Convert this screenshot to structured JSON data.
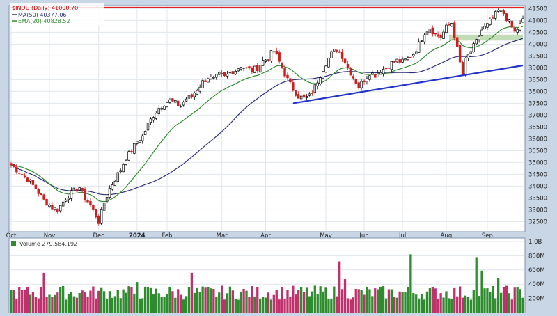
{
  "chart_data": [
    {
      "type": "candlestick",
      "title": "$INDU (Daily) 41000.70",
      "symbol": "$INDU",
      "period": "Daily",
      "last": "41000.70",
      "legend": [
        {
          "label": "MA(50) 40377.06",
          "color": "#2f2f7a"
        },
        {
          "label": "EMA(20) 40828.52",
          "color": "#2e8b2e"
        }
      ],
      "x_labels": [
        "Oct",
        "Nov",
        "Dec",
        "2024",
        "Feb",
        "Mar",
        "Apr",
        "May",
        "Jun",
        "Jul",
        "Aug",
        "Sep"
      ],
      "y_ticks": [
        "32500",
        "33000",
        "33500",
        "34000",
        "34500",
        "35000",
        "35500",
        "36000",
        "36500",
        "37000",
        "37500",
        "38000",
        "38500",
        "39000",
        "39500",
        "40000",
        "40500",
        "41000",
        "41500"
      ],
      "ylim": [
        32100,
        41600
      ],
      "grid": true,
      "price_path": [
        [
          0,
          34900
        ],
        [
          3,
          34600
        ],
        [
          6,
          34300
        ],
        [
          9,
          33900
        ],
        [
          12,
          33400
        ],
        [
          15,
          33100
        ],
        [
          17,
          33000
        ],
        [
          20,
          33500
        ],
        [
          23,
          33800
        ],
        [
          25,
          33950
        ],
        [
          27,
          33500
        ],
        [
          29,
          33200
        ],
        [
          31,
          32750
        ],
        [
          32,
          32500
        ],
        [
          34,
          33300
        ],
        [
          36,
          33900
        ],
        [
          38,
          34300
        ],
        [
          40,
          34700
        ],
        [
          42,
          35200
        ],
        [
          44,
          35500
        ],
        [
          46,
          35900
        ],
        [
          48,
          36100
        ],
        [
          50,
          36600
        ],
        [
          52,
          37000
        ],
        [
          54,
          37300
        ],
        [
          56,
          37500
        ],
        [
          58,
          37600
        ],
        [
          60,
          37500
        ],
        [
          62,
          37400
        ],
        [
          64,
          37700
        ],
        [
          66,
          37800
        ],
        [
          68,
          38100
        ],
        [
          70,
          38400
        ],
        [
          72,
          38600
        ],
        [
          74,
          38500
        ],
        [
          76,
          38700
        ],
        [
          78,
          38600
        ],
        [
          80,
          38800
        ],
        [
          82,
          38900
        ],
        [
          84,
          39100
        ],
        [
          86,
          38950
        ],
        [
          88,
          38900
        ],
        [
          90,
          39000
        ],
        [
          92,
          39300
        ],
        [
          94,
          39400
        ],
        [
          95,
          39600
        ],
        [
          96,
          39700
        ],
        [
          97,
          39500
        ],
        [
          99,
          39000
        ],
        [
          101,
          38500
        ],
        [
          103,
          38100
        ],
        [
          105,
          37800
        ],
        [
          107,
          37700
        ],
        [
          109,
          37800
        ],
        [
          111,
          38200
        ],
        [
          113,
          38700
        ],
        [
          115,
          39200
        ],
        [
          117,
          39600
        ],
        [
          119,
          39800
        ],
        [
          121,
          39500
        ],
        [
          123,
          39000
        ],
        [
          125,
          38600
        ],
        [
          127,
          38200
        ],
        [
          129,
          38500
        ],
        [
          131,
          38800
        ],
        [
          133,
          38700
        ],
        [
          135,
          38900
        ],
        [
          137,
          39000
        ],
        [
          139,
          39200
        ],
        [
          141,
          39300
        ],
        [
          143,
          39250
        ],
        [
          145,
          39400
        ],
        [
          147,
          39600
        ],
        [
          149,
          40000
        ],
        [
          151,
          40500
        ],
        [
          153,
          40700
        ],
        [
          155,
          40400
        ],
        [
          157,
          40300
        ],
        [
          159,
          40700
        ],
        [
          161,
          40900
        ],
        [
          163,
          39800
        ],
        [
          164,
          39200
        ],
        [
          165,
          38700
        ],
        [
          166,
          39300
        ],
        [
          168,
          39700
        ],
        [
          170,
          40100
        ],
        [
          172,
          40600
        ],
        [
          174,
          40800
        ],
        [
          176,
          41100
        ],
        [
          178,
          41400
        ],
        [
          180,
          41300
        ],
        [
          182,
          40900
        ],
        [
          184,
          40500
        ],
        [
          186,
          40800
        ],
        [
          187,
          41000
        ]
      ],
      "resistance_line": 41550,
      "support_trendline": [
        [
          103,
          37500
        ],
        [
          187,
          39100
        ]
      ],
      "support_zone": [
        40150,
        40400
      ]
    },
    {
      "type": "bar",
      "title": "Volume 279,584,192",
      "y_ticks": [
        "200M",
        "400M",
        "600M",
        "800M",
        "1.0B"
      ],
      "ylim": [
        0,
        1000
      ],
      "colors": {
        "up": "#2e8b2e",
        "down": "#c0306a"
      }
    }
  ]
}
